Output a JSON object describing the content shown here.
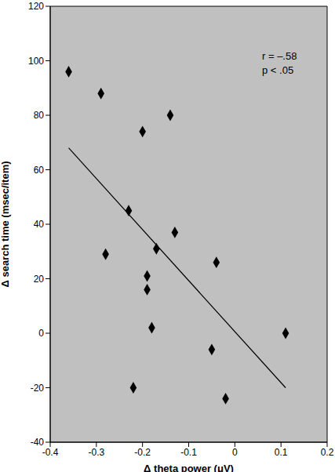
{
  "chart_data": {
    "type": "scatter",
    "x_label": "Δ theta power (μV)",
    "y_label": "Δ search time (msec/item)",
    "annotations": [
      "r = –.58",
      "p < .05"
    ],
    "x": [
      -0.36,
      -0.29,
      -0.14,
      -0.2,
      -0.23,
      -0.13,
      -0.28,
      -0.17,
      -0.04,
      -0.19,
      -0.19,
      -0.18,
      -0.22,
      -0.05,
      0.11,
      -0.02
    ],
    "values": [
      96,
      88,
      80,
      74,
      45,
      37,
      29,
      31,
      26,
      21,
      16,
      2,
      -20,
      -6,
      0,
      -24
    ],
    "fit": {
      "x": [
        -0.36,
        0.11
      ],
      "values": [
        68,
        -20
      ]
    },
    "color": "#000000",
    "marker": "diamond",
    "xlim": [
      -0.4,
      0.2
    ],
    "xticks": [
      -0.4,
      -0.3,
      -0.2,
      -0.1,
      0,
      0.1,
      0.2
    ],
    "ylim": [
      -40,
      120
    ],
    "yticks": [
      -40,
      -20,
      0,
      20,
      40,
      60,
      80,
      100,
      120
    ],
    "grid": false
  }
}
